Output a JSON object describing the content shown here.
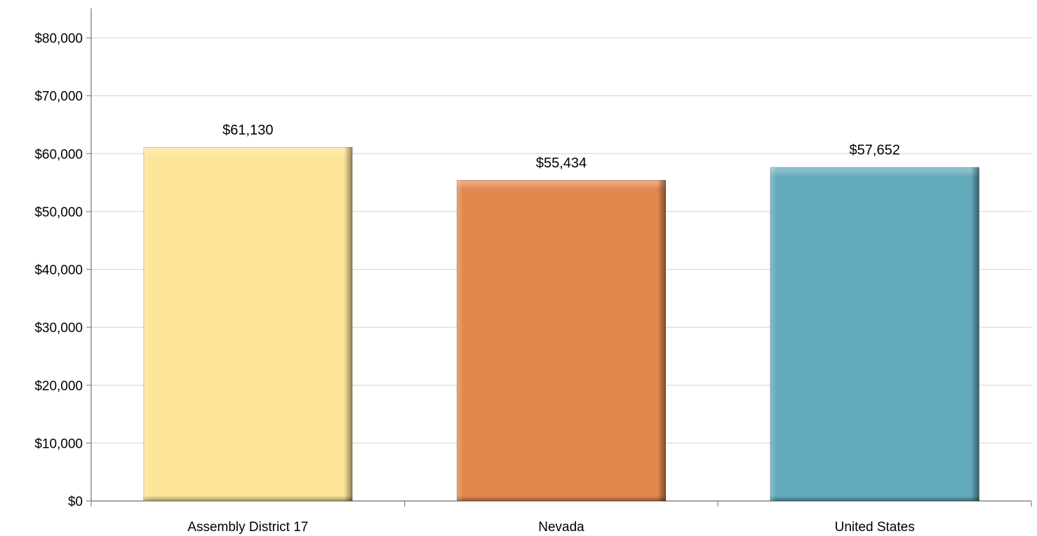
{
  "chart_data": {
    "type": "bar",
    "title": "",
    "xlabel": "",
    "ylabel": "",
    "categories": [
      "Assembly District 17",
      "Nevada",
      "United States"
    ],
    "values": [
      61130,
      55434,
      57652
    ],
    "value_labels": [
      "$61,130",
      "$55,434",
      "$57,652"
    ],
    "colors": [
      "#FDE598",
      "#E2884F",
      "#63AABC"
    ],
    "ylim": [
      0,
      80000
    ],
    "yticks": [
      0,
      10000,
      20000,
      30000,
      40000,
      50000,
      60000,
      70000,
      80000
    ],
    "ytick_labels": [
      "$0",
      "$10,000",
      "$20,000",
      "$30,000",
      "$40,000",
      "$50,000",
      "$60,000",
      "$70,000",
      "$80,000"
    ],
    "grid": true,
    "legend": "none"
  }
}
